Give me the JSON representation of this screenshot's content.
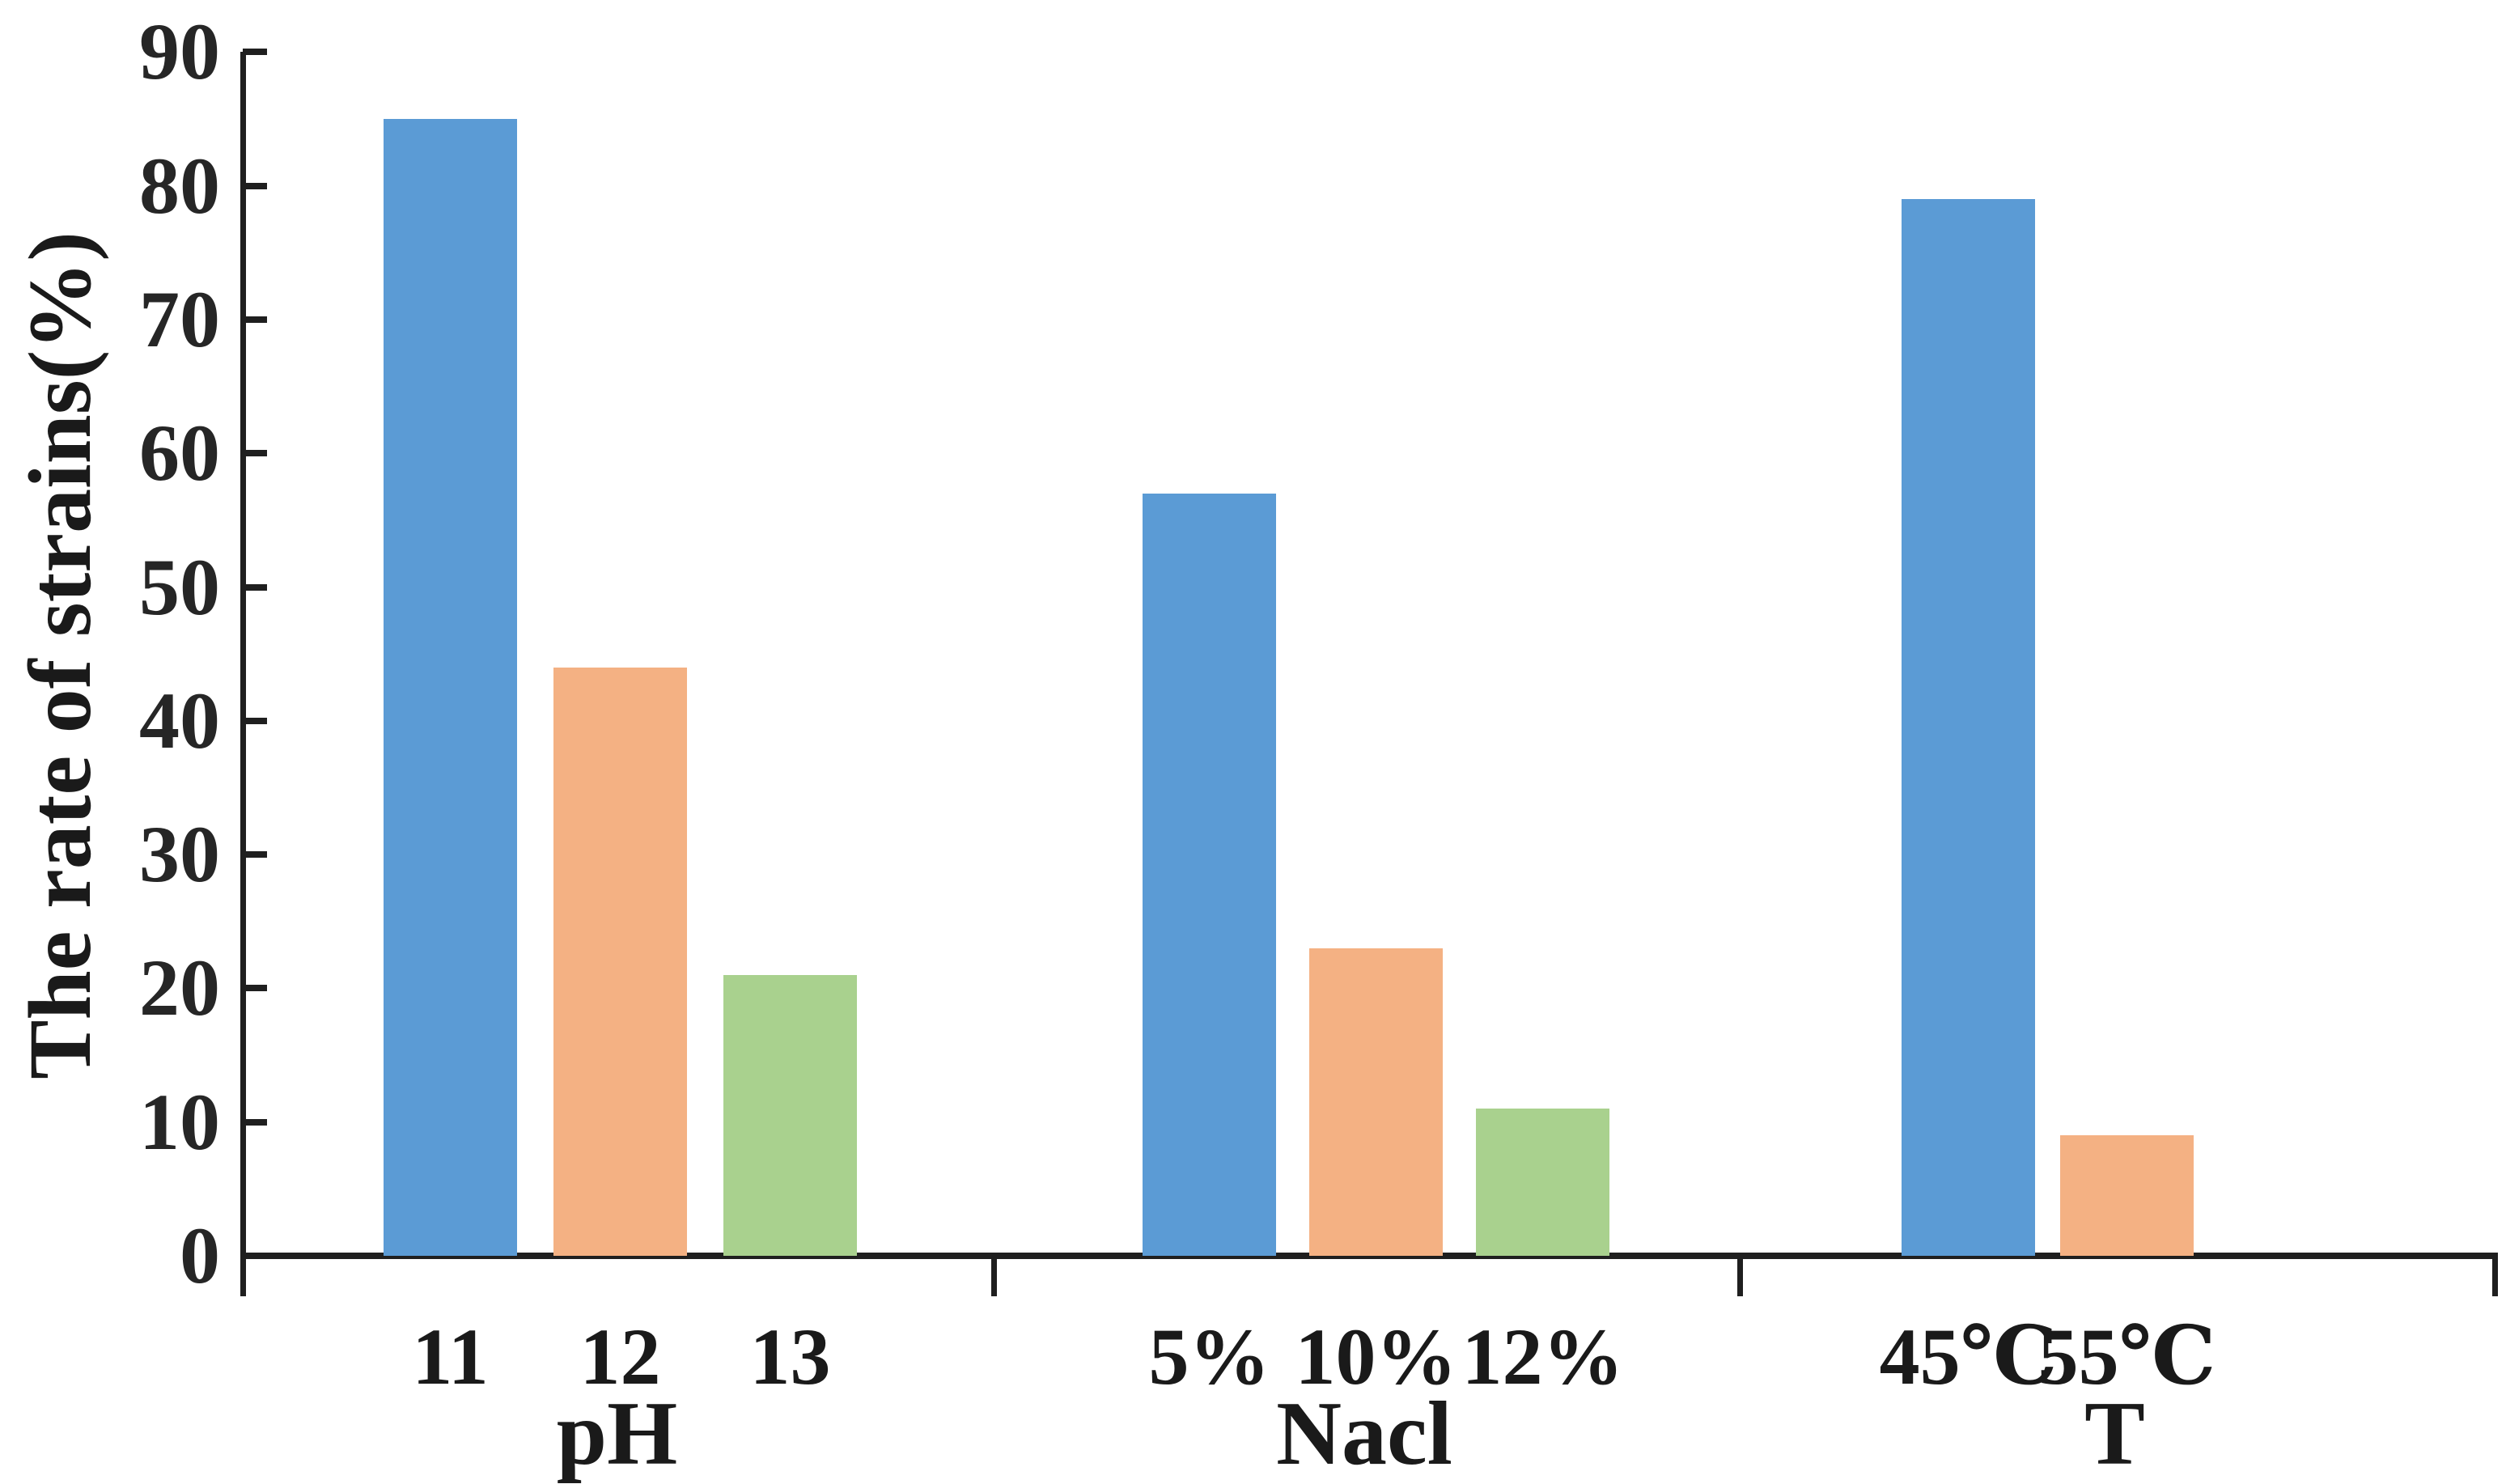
{
  "chart_data": {
    "type": "bar",
    "title": "",
    "xlabel": "",
    "ylabel": "The rate of strains(%)",
    "ylim": [
      0,
      90
    ],
    "yticks": [
      0,
      10,
      20,
      30,
      40,
      50,
      60,
      70,
      80,
      90
    ],
    "grid": false,
    "legend": null,
    "bar_colors": [
      "#5B9BD5",
      "#F4B183",
      "#A9D18E"
    ],
    "bar_color_names": [
      "blue",
      "orange",
      "green"
    ],
    "axis_color": "#1f1f1f",
    "groups": [
      {
        "label": "pH",
        "categories": [
          "11",
          "12",
          "13"
        ],
        "values": [
          85,
          44,
          21
        ]
      },
      {
        "label": "Nacl",
        "categories": [
          "5%",
          "10%",
          "12%"
        ],
        "values": [
          57,
          23,
          11
        ]
      },
      {
        "label": "T",
        "categories": [
          "45℃",
          "55℃"
        ],
        "values": [
          79,
          9
        ]
      }
    ]
  }
}
